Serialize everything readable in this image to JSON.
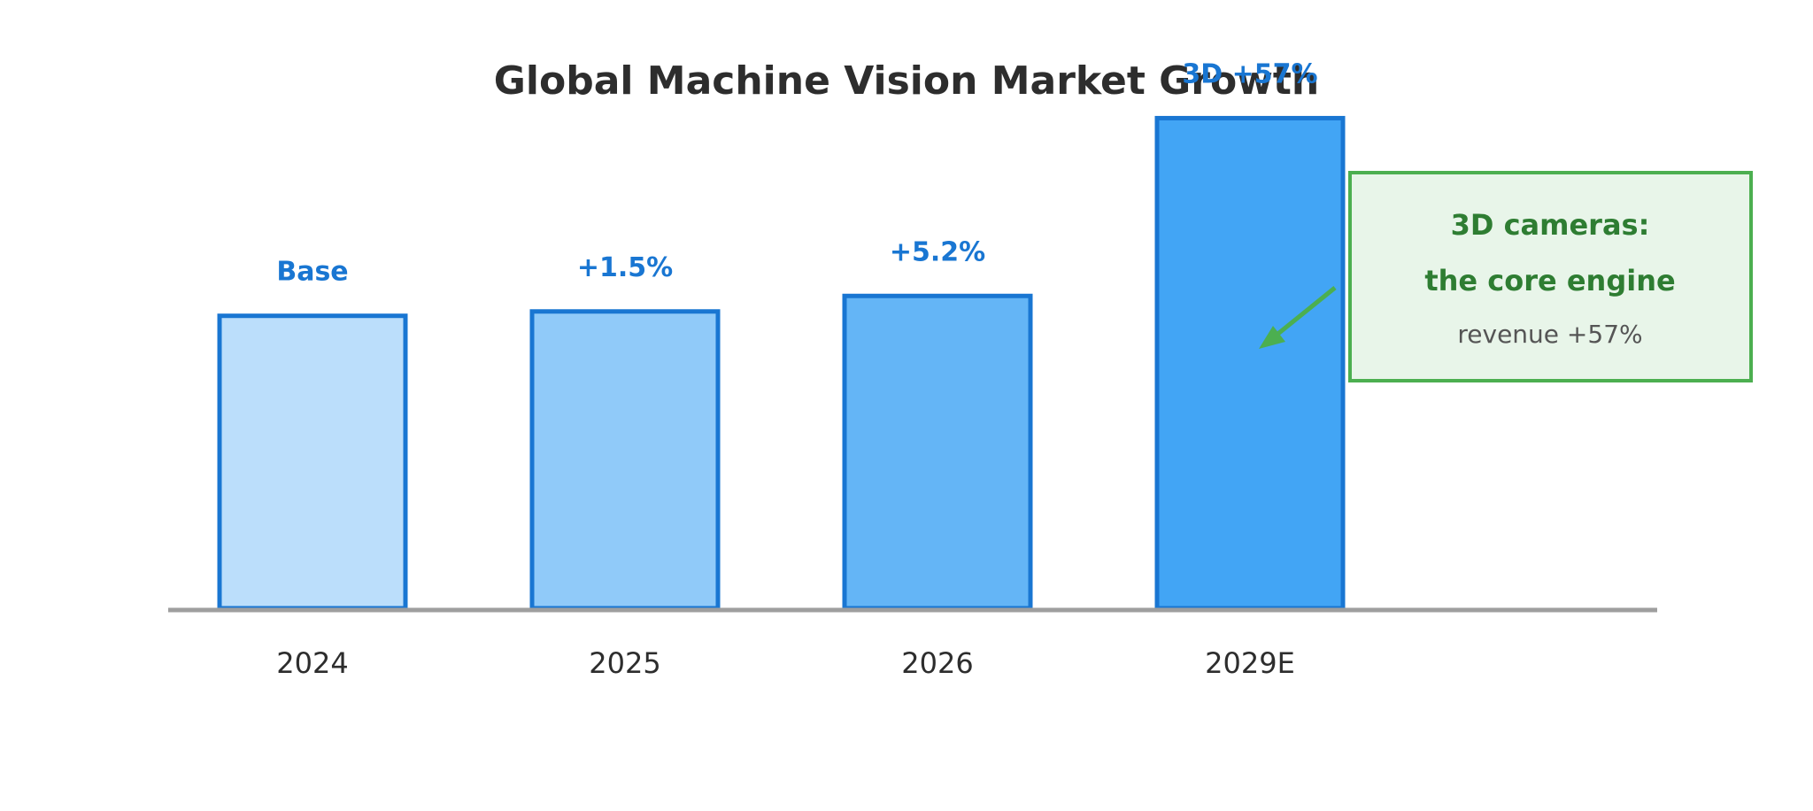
{
  "chart_data": {
    "type": "bar",
    "title": "Global Machine Vision Market Growth",
    "xlabel": "",
    "ylabel": "",
    "categories": [
      "2024",
      "2025",
      "2026",
      "2029E"
    ],
    "values": [
      100,
      101.5,
      106.8,
      167.6
    ],
    "bar_labels": [
      "Base",
      "+1.5%",
      "+5.2%",
      "3D +57%"
    ],
    "ylim": [
      0,
      175
    ],
    "grid": false,
    "legend": "none",
    "annotation": {
      "line1": "3D cameras:",
      "line2": "the core engine",
      "line3": "revenue +57%",
      "points_to": "2029E"
    }
  },
  "colors": {
    "bar_fills": [
      "#bbdefb",
      "#90caf9",
      "#64b5f6",
      "#42a5f5"
    ],
    "bar_stroke": "#1976d2",
    "bar_label": "#1976d2",
    "axis": "#9e9e9e",
    "title": "#2d2d2d",
    "annotation_border": "#4caf50",
    "annotation_fill": "#e8f5e9",
    "annotation_text": "#2e7d32",
    "annotation_subtext": "#555555"
  }
}
